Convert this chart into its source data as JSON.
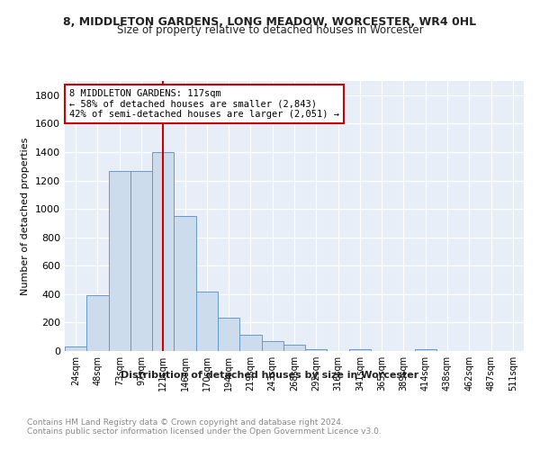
{
  "title1": "8, MIDDLETON GARDENS, LONG MEADOW, WORCESTER, WR4 0HL",
  "title2": "Size of property relative to detached houses in Worcester",
  "xlabel": "Distribution of detached houses by size in Worcester",
  "ylabel": "Number of detached properties",
  "bin_labels": [
    "24sqm",
    "48sqm",
    "73sqm",
    "97sqm",
    "121sqm",
    "146sqm",
    "170sqm",
    "194sqm",
    "219sqm",
    "243sqm",
    "268sqm",
    "292sqm",
    "316sqm",
    "341sqm",
    "365sqm",
    "389sqm",
    "414sqm",
    "438sqm",
    "462sqm",
    "487sqm",
    "511sqm"
  ],
  "bin_values": [
    30,
    390,
    1265,
    1265,
    1400,
    950,
    415,
    235,
    115,
    70,
    42,
    15,
    0,
    15,
    0,
    0,
    15,
    0,
    0,
    0,
    0
  ],
  "bar_color": "#ccdcec",
  "bar_edge_color": "#6699cc",
  "red_line_color": "#cc0000",
  "property_bin_index": 4,
  "annotation_text": "8 MIDDLETON GARDENS: 117sqm\n← 58% of detached houses are smaller (2,843)\n42% of semi-detached houses are larger (2,051) →",
  "annotation_box_color": "#ffffff",
  "annotation_box_edge": "#cc0000",
  "bg_color": "#e8eef8",
  "footer_text": "Contains HM Land Registry data © Crown copyright and database right 2024.\nContains public sector information licensed under the Open Government Licence v3.0.",
  "ylim": [
    0,
    1900
  ],
  "yticks": [
    0,
    200,
    400,
    600,
    800,
    1000,
    1200,
    1400,
    1600,
    1800
  ]
}
